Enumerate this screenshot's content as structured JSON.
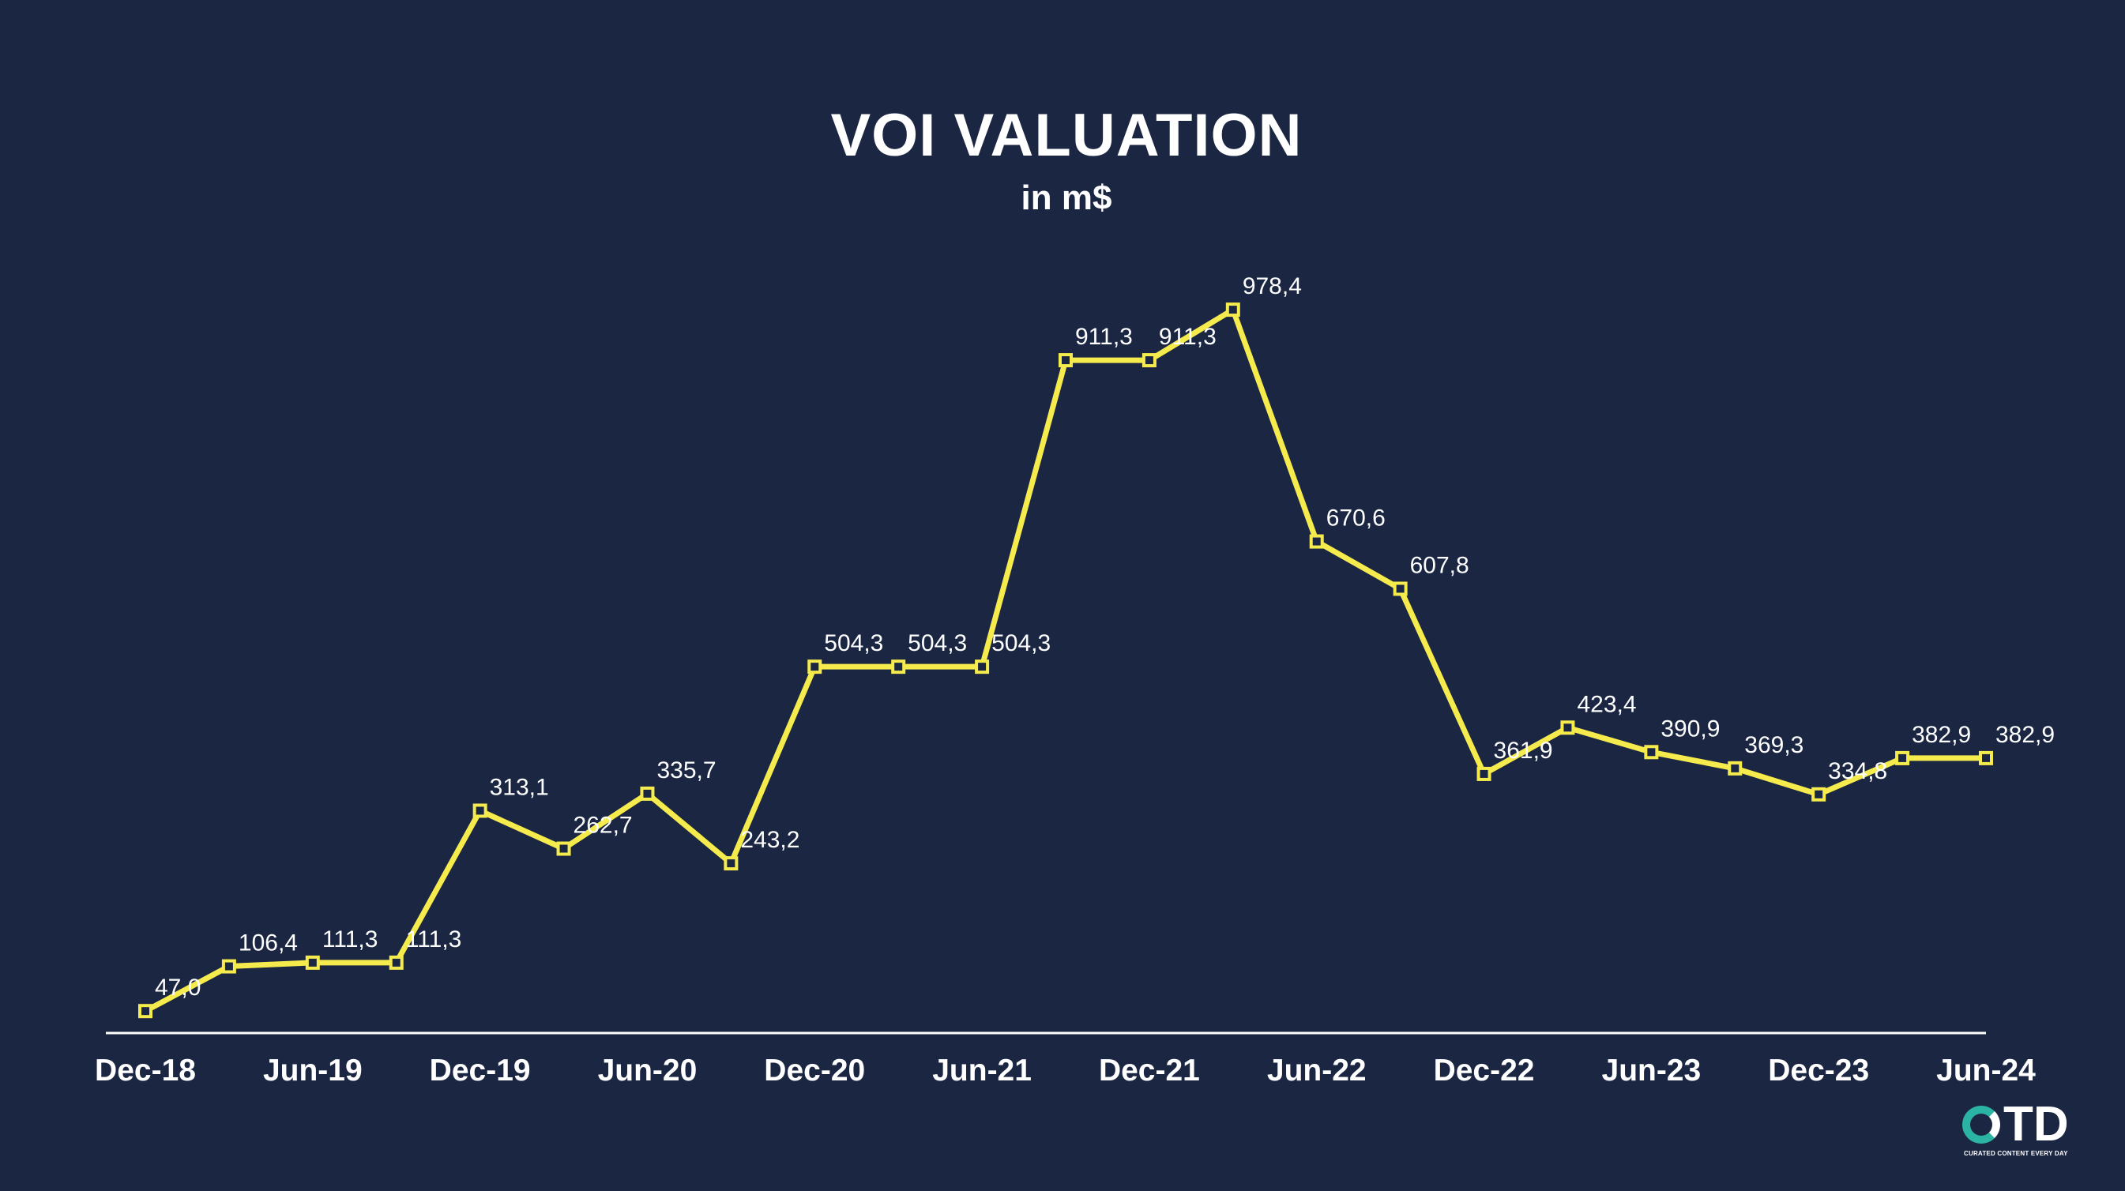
{
  "chart_data": {
    "type": "line",
    "title": "VOI VALUATION",
    "subtitle": "in m$",
    "xlabel": "",
    "ylabel": "",
    "ylim": [
      0,
      1000
    ],
    "grid": false,
    "x_tick_labels": [
      "Dec-18",
      "Jun-19",
      "Dec-19",
      "Jun-20",
      "Dec-20",
      "Jun-21",
      "Dec-21",
      "Jun-22",
      "Dec-22",
      "Jun-23",
      "Dec-23",
      "Jun-24"
    ],
    "series": [
      {
        "color": "#f5eb4c",
        "values": [
          47.0,
          106.4,
          111.3,
          111.3,
          313.1,
          262.7,
          335.7,
          243.2,
          504.3,
          504.3,
          504.3,
          911.3,
          911.3,
          978.4,
          670.6,
          607.8,
          361.9,
          423.4,
          390.9,
          369.3,
          334.8,
          382.9,
          382.9
        ],
        "labels": [
          "47,0",
          "106,4",
          "111,3",
          "111,3",
          "313,1",
          "262,7",
          "335,7",
          "243,2",
          "504,3",
          "504,3",
          "504,3",
          "911,3",
          "911,3",
          "978,4",
          "670,6",
          "607,8",
          "361,9",
          "423,4",
          "390,9",
          "369,3",
          "334,8",
          "382,9",
          "382,9"
        ]
      }
    ]
  },
  "logo": {
    "text": "TD",
    "tagline": "CURATED CONTENT EVERY DAY",
    "accent_color": "#2bb3a3"
  }
}
